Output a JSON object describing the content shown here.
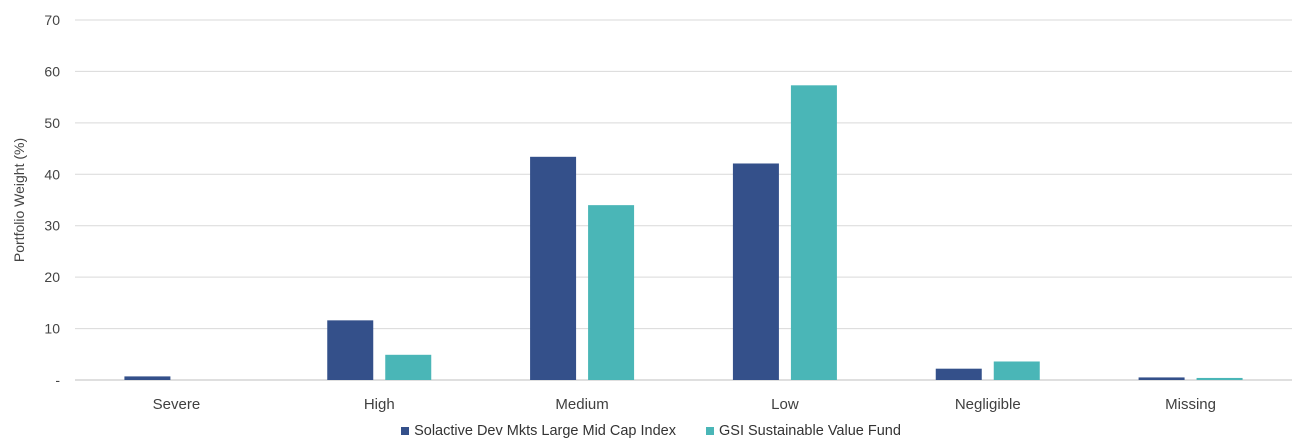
{
  "chart_data": {
    "type": "bar",
    "categories": [
      "Severe",
      "High",
      "Medium",
      "Low",
      "Negligible",
      "Missing"
    ],
    "series": [
      {
        "name": "Solactive Dev Mkts Large Mid Cap Index",
        "color": "#34508A",
        "values": [
          0.7,
          11.6,
          43.4,
          42.1,
          2.2,
          0.5
        ]
      },
      {
        "name": "GSI Sustainable Value Fund",
        "color": "#4AB6B7",
        "values": [
          0.0,
          4.9,
          34.0,
          57.3,
          3.6,
          0.4
        ]
      }
    ],
    "ylabel": "Portfolio Weight (%)",
    "xlabel": "",
    "ylim": [
      0,
      70
    ],
    "yticks": [
      "-",
      "10",
      "20",
      "30",
      "40",
      "50",
      "60",
      "70"
    ],
    "grid": true,
    "legend_position": "bottom"
  }
}
